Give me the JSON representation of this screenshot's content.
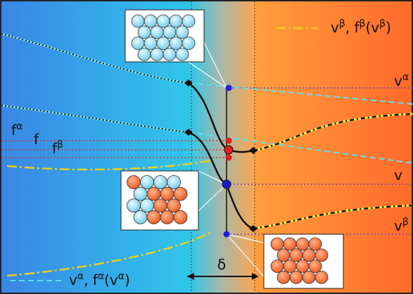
{
  "labels": {
    "legend_beta": [
      {
        "t": "v",
        "sup": "β"
      },
      {
        "t": ", f",
        "sup": "β"
      },
      {
        "t": "(v",
        "sup": "β"
      },
      {
        "t": ")"
      }
    ],
    "legend_alpha": [
      {
        "t": "v",
        "sup": "α"
      },
      {
        "t": ", f",
        "sup": "α"
      },
      {
        "t": "(v",
        "sup": "α"
      },
      {
        "t": ")"
      }
    ],
    "f_alpha": {
      "t": "f",
      "sup": "α"
    },
    "f": "f",
    "f_beta": {
      "t": "f",
      "sup": "β"
    },
    "v_alpha": {
      "t": "v",
      "sup": "α"
    },
    "v": "v",
    "v_beta": {
      "t": "v",
      "sup": "β"
    },
    "delta": "δ"
  }
}
